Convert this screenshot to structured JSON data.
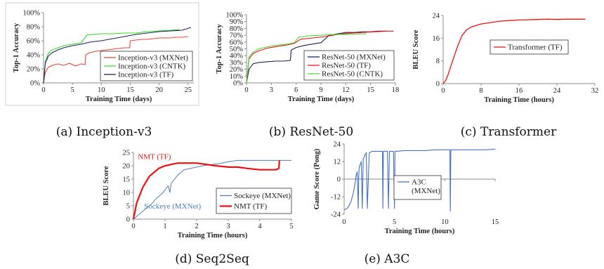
{
  "chart_data": [
    {
      "type": "line",
      "caption": "(a) Inception-v3",
      "xlabel": "Training Time (days)",
      "ylabel": "Top-1 Accuracy",
      "xlim": [
        0,
        26
      ],
      "ylim": [
        0,
        100
      ],
      "xticks": [
        "0",
        "5",
        "10",
        "15",
        "20",
        "25"
      ],
      "yticks": [
        "0%",
        "20%",
        "40%",
        "60%",
        "80%",
        "100%"
      ],
      "legend": "bottom-right",
      "series": [
        {
          "name": "Inception-v3 (MXNet)",
          "color": "#ee4433",
          "width": 1.1,
          "x": [
            0,
            0.3,
            0.8,
            1.5,
            2.5,
            3.5,
            4.5,
            5.5,
            6.5,
            7.2,
            7.3,
            8,
            9,
            10,
            11,
            12,
            13,
            14,
            14.9,
            15,
            16,
            17,
            18,
            19,
            20,
            21,
            22,
            23,
            24,
            25
          ],
          "y": [
            0,
            15,
            22,
            25,
            27,
            25,
            28,
            24,
            27,
            26,
            40,
            43,
            45,
            46,
            47,
            48,
            49,
            50,
            50,
            60,
            61,
            62,
            62,
            63,
            64,
            64,
            64,
            65,
            65,
            66
          ]
        },
        {
          "name": "Inception-v3 (CNTK)",
          "color": "#33dd22",
          "width": 1.1,
          "x": [
            0,
            0.3,
            0.8,
            1.5,
            2.5,
            3.5,
            5,
            6.5,
            7.5,
            8.5,
            10,
            12,
            14,
            16,
            18,
            20,
            22,
            23.5
          ],
          "y": [
            0,
            30,
            42,
            47,
            50,
            53,
            55,
            57,
            68,
            69,
            70,
            70,
            71,
            71,
            73,
            74,
            75,
            76
          ]
        },
        {
          "name": "Inception-v3 (TF)",
          "color": "#1b1f5c",
          "width": 1.1,
          "x": [
            0,
            0.3,
            0.8,
            1.5,
            2.5,
            3.5,
            5,
            6.5,
            8,
            10,
            12,
            14,
            16,
            18,
            20,
            22,
            24,
            25.5
          ],
          "y": [
            0,
            28,
            38,
            43,
            47,
            50,
            53,
            55,
            58,
            60,
            63,
            66,
            69,
            71,
            73,
            74,
            75,
            79
          ]
        }
      ]
    },
    {
      "type": "line",
      "caption": "(b) ResNet-50",
      "xlabel": "Training Time (days)",
      "ylabel": "Top-1 Accuracy",
      "xlim": [
        0,
        18
      ],
      "ylim": [
        0,
        100
      ],
      "xticks": [
        "0",
        "3",
        "6",
        "9",
        "12",
        "15",
        "18"
      ],
      "yticks": [
        "0%",
        "10%",
        "20%",
        "30%",
        "40%",
        "50%",
        "60%",
        "70%",
        "80%",
        "90%",
        "100%"
      ],
      "legend": "bottom-right",
      "series": [
        {
          "name": "ResNet-50 (MXNet)",
          "color": "#1b1f5c",
          "width": 1.1,
          "x": [
            0,
            0.3,
            0.8,
            1.5,
            2.5,
            3.5,
            4.5,
            5.3,
            5.4,
            6,
            7,
            8,
            9,
            10,
            11,
            12,
            13,
            14,
            15,
            16,
            17
          ],
          "y": [
            0,
            20,
            28,
            30,
            31,
            32,
            32,
            33,
            48,
            52,
            55,
            57,
            59,
            70,
            72,
            74,
            74,
            75,
            75,
            76,
            76
          ]
        },
        {
          "name": "ResNet-50 (TF)",
          "color": "#ee1111",
          "width": 1.1,
          "x": [
            0,
            0.3,
            0.8,
            1.5,
            2.5,
            3.5,
            5,
            5.8,
            6.5,
            8,
            9.5,
            11,
            12.5,
            14,
            15.5,
            17,
            17.8
          ],
          "y": [
            0,
            35,
            43,
            47,
            51,
            53,
            56,
            58,
            64,
            66,
            68,
            71,
            73,
            74,
            75,
            76,
            76
          ]
        },
        {
          "name": "ResNet-50 (CNTK)",
          "color": "#44dd33",
          "width": 1.1,
          "x": [
            0,
            0.3,
            0.8,
            1.5,
            2.5,
            3.5,
            5,
            5.8,
            6.3,
            7.5,
            9,
            10.5,
            12,
            13.5,
            14.5
          ],
          "y": [
            0,
            38,
            45,
            50,
            53,
            55,
            57,
            59,
            67,
            69,
            70,
            71,
            71,
            72,
            72
          ]
        }
      ]
    },
    {
      "type": "line",
      "caption": "(c) Transformer",
      "xlabel": "Training Time (hours)",
      "ylabel": "BLEU Score",
      "xlim": [
        0,
        32
      ],
      "ylim": [
        0,
        24
      ],
      "xticks": [
        "0",
        "8",
        "16",
        "24",
        "32"
      ],
      "yticks": [
        "0",
        "8",
        "16",
        "24"
      ],
      "legend": "middle",
      "series": [
        {
          "name": "Transformer (TF)",
          "color": "#ee1111",
          "width": 1.3,
          "x": [
            0,
            0.5,
            1,
            1.5,
            2,
            2.5,
            3,
            3.5,
            4,
            5,
            6,
            7,
            8,
            10,
            12,
            14,
            16,
            18,
            20,
            22,
            24,
            26,
            28,
            30
          ],
          "y": [
            0,
            1,
            3,
            5.5,
            8,
            10.5,
            13,
            15,
            17,
            19,
            20,
            20.5,
            21,
            21.5,
            22,
            22.2,
            22.4,
            22.5,
            22.6,
            22.7,
            22.6,
            22.7,
            22.7,
            22.7
          ]
        }
      ]
    },
    {
      "type": "line",
      "caption": "(d) Seq2Seq",
      "xlabel": "Training Time (hours)",
      "ylabel": "BLEU Score",
      "xlim": [
        0,
        5
      ],
      "ylim": [
        0,
        25
      ],
      "xticks": [
        "0",
        "1",
        "2",
        "3",
        "4",
        "5"
      ],
      "yticks": [
        "0",
        "5",
        "10",
        "15",
        "20",
        "25"
      ],
      "legend": "bottom-right",
      "annotations": [
        {
          "text": "NMT (TF)",
          "color": "#ee1111",
          "x": 0.05,
          "y": 22.5
        },
        {
          "text": "Sockeye (MXNet)",
          "color": "#4d7bbf",
          "x": 0.25,
          "y": 4
        }
      ],
      "series": [
        {
          "name": "Sockeye (MXNet)",
          "color": "#4d7bbf",
          "width": 1.0,
          "x": [
            0,
            0.1,
            0.2,
            0.3,
            0.4,
            0.5,
            0.6,
            0.7,
            0.8,
            0.9,
            1.0,
            1.1,
            1.15,
            1.2,
            1.3,
            1.4,
            1.5,
            1.6,
            1.8,
            2.0,
            2.2,
            2.5,
            2.8,
            3.0,
            3.3,
            3.6,
            4.0,
            4.3,
            4.6,
            5.0
          ],
          "y": [
            0,
            1,
            2,
            3,
            4,
            5,
            6,
            7.5,
            8.5,
            9.5,
            11,
            12.5,
            10,
            13.5,
            15,
            16.5,
            17.5,
            18.5,
            19,
            19.5,
            20,
            20.5,
            21,
            21.5,
            22,
            22,
            22,
            22,
            22,
            22
          ]
        },
        {
          "name": "NMT (TF)",
          "color": "#ee1111",
          "width": 2.2,
          "x": [
            0,
            0.05,
            0.1,
            0.2,
            0.3,
            0.4,
            0.5,
            0.6,
            0.7,
            0.8,
            1.0,
            1.2,
            1.4,
            1.6,
            1.8,
            2.0,
            2.3,
            2.6,
            3.0,
            3.3,
            3.6,
            4.0,
            4.3,
            4.5,
            4.6,
            4.62
          ],
          "y": [
            0,
            3,
            6,
            9,
            12,
            14,
            16,
            17,
            18,
            19,
            20,
            20.5,
            21,
            21,
            21,
            21,
            20.5,
            20,
            19.5,
            19.5,
            19,
            18.5,
            18.5,
            18.5,
            19,
            22
          ]
        }
      ]
    },
    {
      "type": "line",
      "caption": "(e) A3C",
      "xlabel": "Training Time (hours)",
      "ylabel": "Game Score (Pong)",
      "xlim": [
        0,
        15
      ],
      "ylim": [
        -24,
        24
      ],
      "xticks": [
        "0",
        "5",
        "10",
        "15"
      ],
      "yticks": [
        "-24",
        "-12",
        "0",
        "12",
        "24"
      ],
      "legend": "middle-left",
      "series": [
        {
          "name": "A3C (MXNet)",
          "color": "#4472c4",
          "width": 1.1,
          "x": [
            0,
            0.3,
            0.5,
            0.7,
            0.9,
            1.0,
            1.1,
            1.2,
            1.3,
            1.4,
            1.45,
            1.5,
            1.6,
            1.7,
            1.8,
            1.9,
            2.0,
            2.1,
            2.2,
            2.3,
            2.5,
            2.8,
            3.0,
            3.2,
            3.5,
            3.8,
            3.85,
            3.9,
            4.0,
            4.3,
            4.4,
            4.5,
            4.6,
            4.9,
            5.0,
            5.05,
            5.1,
            5.2,
            6,
            7,
            8,
            9,
            10,
            10.5,
            10.55,
            10.6,
            10.7,
            11,
            12,
            13,
            14,
            15
          ],
          "y": [
            -21,
            -20,
            -18,
            -15,
            -10,
            -6,
            -2,
            3,
            5,
            -20,
            2,
            8,
            10,
            12,
            -20,
            14,
            15,
            17,
            18,
            -20,
            18,
            19,
            19,
            19,
            19,
            19,
            -20,
            19,
            19,
            19,
            -20,
            19,
            19,
            19,
            -20,
            19,
            19,
            19,
            19.5,
            19.5,
            19.5,
            20,
            20,
            20,
            -22,
            20,
            20,
            20,
            20,
            20,
            20,
            20.5
          ]
        }
      ]
    }
  ]
}
